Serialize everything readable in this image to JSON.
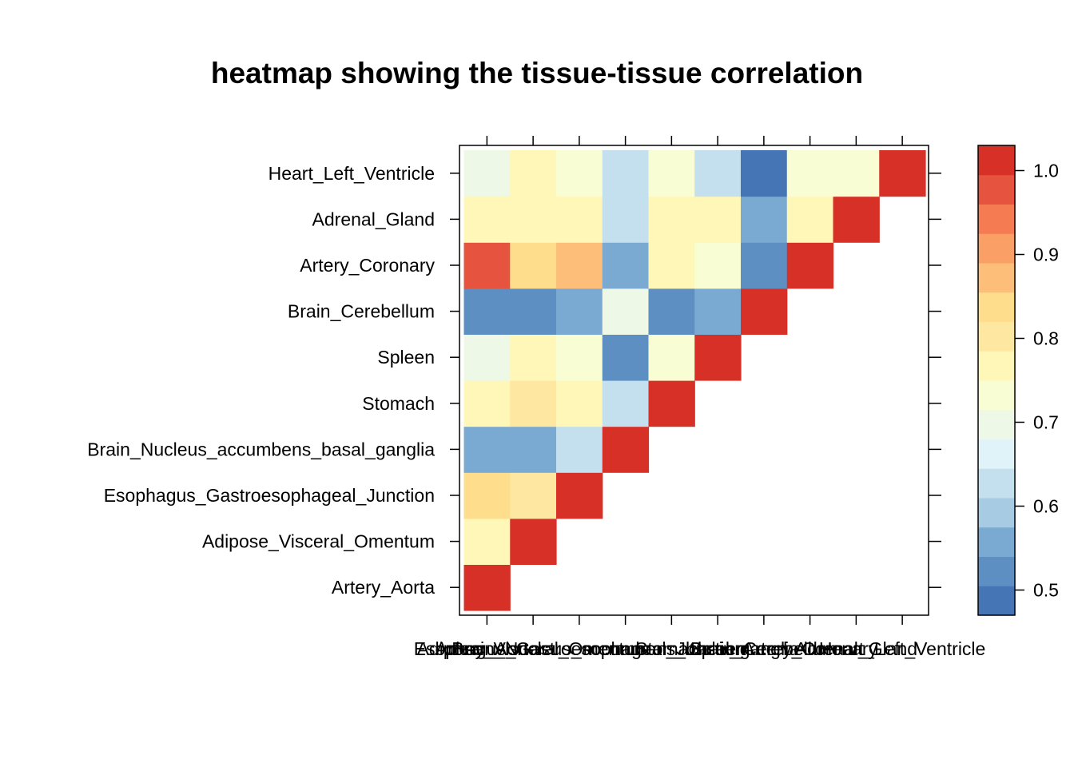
{
  "chart_data": {
    "type": "heatmap",
    "title": "heatmap showing the tissue-tissue correlation",
    "xlabel": "",
    "ylabel": "",
    "tissues": [
      "Artery_Aorta",
      "Adipose_Visceral_Omentum",
      "Esophagus_Gastroesophageal_Junction",
      "Brain_Nucleus_accumbens_basal_ganglia",
      "Stomach",
      "Spleen",
      "Brain_Cerebellum",
      "Artery_Coronary",
      "Adrenal_Gland",
      "Heart_Left_Ventricle"
    ],
    "matrix_lower_triangle": [
      [
        1.0
      ],
      [
        0.78,
        1.0
      ],
      [
        0.83,
        0.81,
        1.0
      ],
      [
        0.56,
        0.56,
        0.61,
        1.0
      ],
      [
        0.76,
        0.81,
        0.78,
        0.61,
        1.0
      ],
      [
        0.68,
        0.76,
        0.72,
        0.52,
        0.72,
        1.0
      ],
      [
        0.52,
        0.52,
        0.56,
        0.68,
        0.52,
        0.56,
        1.0
      ],
      [
        0.97,
        0.83,
        0.88,
        0.56,
        0.78,
        0.72,
        0.52,
        1.0
      ],
      [
        0.76,
        0.78,
        0.78,
        0.61,
        0.78,
        0.76,
        0.56,
        0.78,
        1.0
      ],
      [
        0.68,
        0.76,
        0.72,
        0.61,
        0.72,
        0.61,
        0.48,
        0.72,
        0.72,
        1.0
      ]
    ],
    "colorbar": {
      "range": [
        0.47,
        1.03
      ],
      "ticks": [
        0.5,
        0.6,
        0.7,
        0.8,
        0.9,
        1.0
      ],
      "tick_labels": [
        "0.5",
        "0.6",
        "0.7",
        "0.8",
        "0.9",
        "1.0"
      ],
      "colors": [
        "#4575B4",
        "#5E8FC3",
        "#7AAAD1",
        "#A6CBE2",
        "#C4DFEE",
        "#E0F3F8",
        "#EEF8E6",
        "#F8FDD4",
        "#FFF7B7",
        "#FEE7A0",
        "#FEDD8D",
        "#FDBE7A",
        "#FA9F66",
        "#F57B53",
        "#E6533F",
        "#D73027"
      ]
    }
  }
}
